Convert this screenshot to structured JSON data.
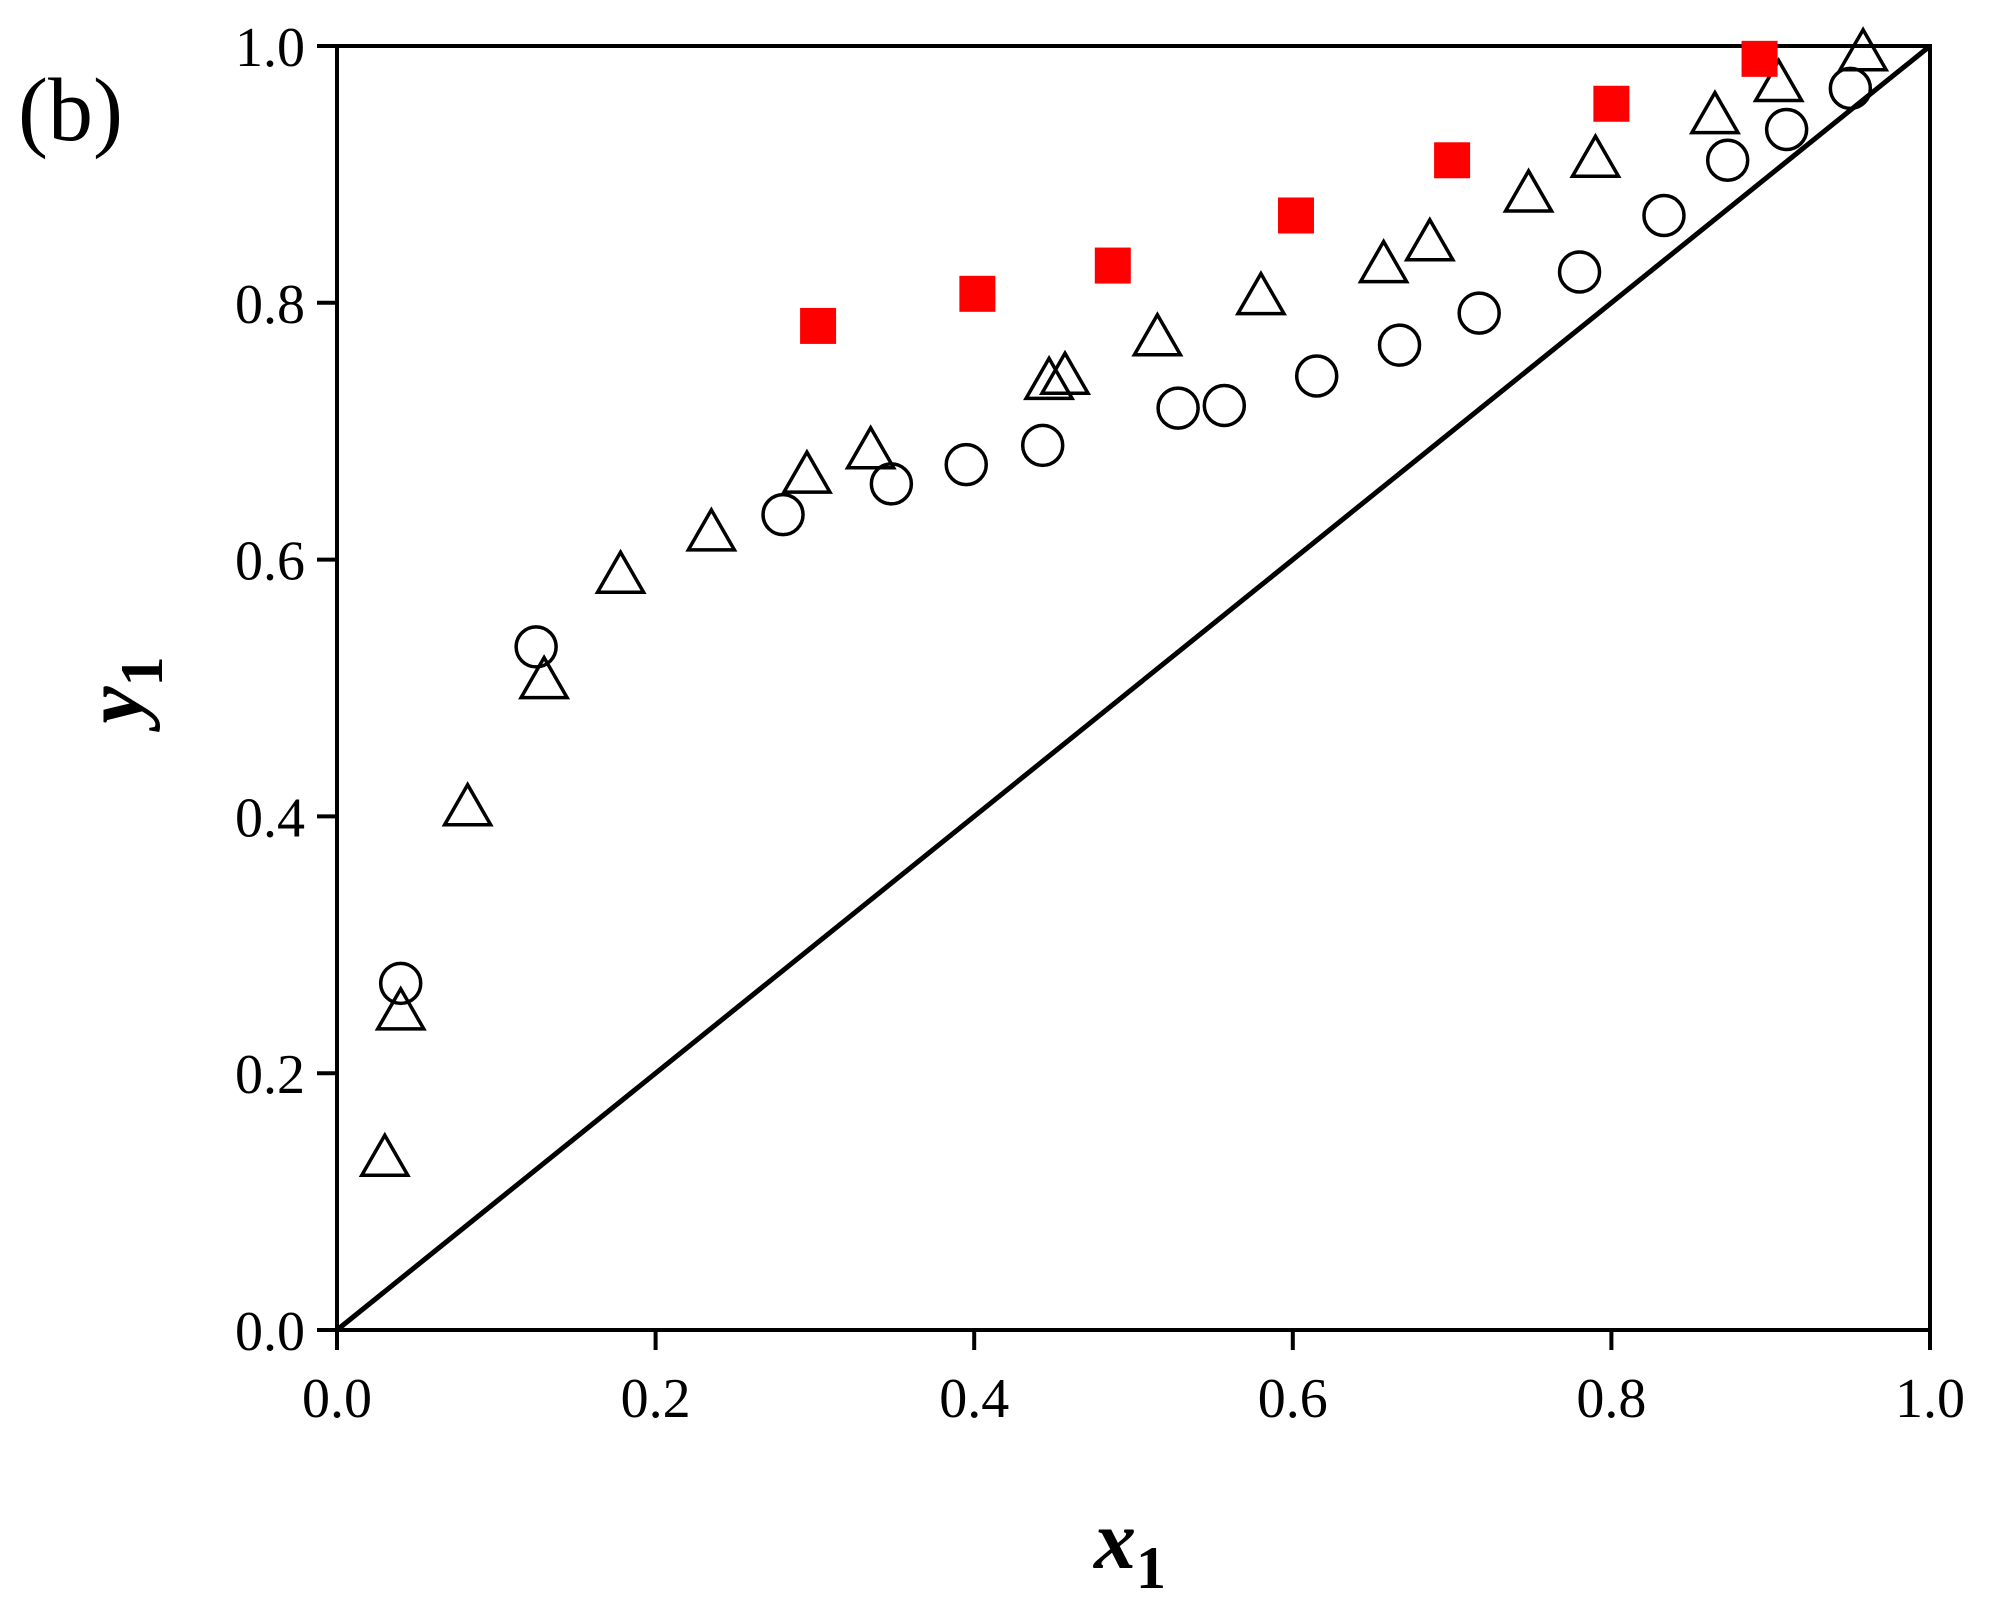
{
  "panel_label": "(b)",
  "chart_data": {
    "type": "scatter",
    "panel_label": "(b)",
    "xlabel": {
      "main": "x",
      "sub": "1"
    },
    "ylabel": {
      "main": "y",
      "sub": "1"
    },
    "xlim": [
      0.0,
      1.0
    ],
    "ylim": [
      0.0,
      1.0
    ],
    "xticks": [
      "0.0",
      "0.2",
      "0.4",
      "0.6",
      "0.8",
      "1.0"
    ],
    "yticks": [
      "0.0",
      "0.2",
      "0.4",
      "0.6",
      "0.8",
      "1.0"
    ],
    "grid": false,
    "legend": "none",
    "diagonal": {
      "x": [
        0.0,
        1.0
      ],
      "y": [
        0.0,
        1.0
      ],
      "color": "#000000"
    },
    "series": [
      {
        "marker": "open-circle",
        "color": "#000000",
        "points": [
          [
            0.04,
            0.27
          ],
          [
            0.125,
            0.532
          ],
          [
            0.28,
            0.635
          ],
          [
            0.348,
            0.659
          ],
          [
            0.395,
            0.674
          ],
          [
            0.443,
            0.689
          ],
          [
            0.528,
            0.718
          ],
          [
            0.557,
            0.72
          ],
          [
            0.615,
            0.743
          ],
          [
            0.667,
            0.767
          ],
          [
            0.717,
            0.792
          ],
          [
            0.78,
            0.824
          ],
          [
            0.833,
            0.868
          ],
          [
            0.873,
            0.911
          ],
          [
            0.91,
            0.935
          ],
          [
            0.95,
            0.967
          ]
        ]
      },
      {
        "marker": "open-triangle",
        "color": "#000000",
        "points": [
          [
            0.03,
            0.133
          ],
          [
            0.04,
            0.247
          ],
          [
            0.082,
            0.406
          ],
          [
            0.13,
            0.505
          ],
          [
            0.178,
            0.587
          ],
          [
            0.235,
            0.62
          ],
          [
            0.295,
            0.665
          ],
          [
            0.335,
            0.684
          ],
          [
            0.447,
            0.738
          ],
          [
            0.457,
            0.742
          ],
          [
            0.515,
            0.772
          ],
          [
            0.58,
            0.804
          ],
          [
            0.657,
            0.829
          ],
          [
            0.686,
            0.846
          ],
          [
            0.748,
            0.884
          ],
          [
            0.79,
            0.911
          ],
          [
            0.865,
            0.945
          ],
          [
            0.905,
            0.97
          ],
          [
            0.958,
            0.994
          ]
        ]
      },
      {
        "marker": "filled-square",
        "color": "#ff0000",
        "points": [
          [
            0.302,
            0.782
          ],
          [
            0.402,
            0.807
          ],
          [
            0.487,
            0.829
          ],
          [
            0.602,
            0.868
          ],
          [
            0.7,
            0.911
          ],
          [
            0.8,
            0.955
          ],
          [
            0.893,
            0.99
          ]
        ]
      }
    ]
  }
}
